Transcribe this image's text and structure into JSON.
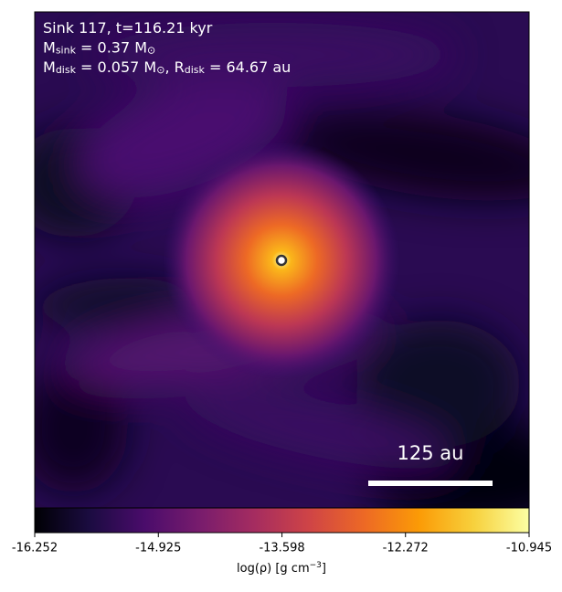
{
  "chart_data": {
    "type": "image",
    "annotations": [
      [
        {
          "text": "Sink 117, t=116.21 kyr"
        }
      ],
      [
        {
          "text": "M"
        },
        {
          "text": "sink",
          "sub": true
        },
        {
          "text": " = 0.37 M"
        },
        {
          "text": "⊙",
          "sub": true
        }
      ],
      [
        {
          "text": "M"
        },
        {
          "text": "disk",
          "sub": true
        },
        {
          "text": " = 0.057 M"
        },
        {
          "text": "⊙",
          "sub": true
        },
        {
          "text": ", R"
        },
        {
          "text": "disk",
          "sub": true
        },
        {
          "text": " = 64.67 au"
        }
      ]
    ],
    "scale_bar": "125 au",
    "colorbar": {
      "clim": [
        -16.252,
        -10.945
      ],
      "ticks": [
        -16.252,
        -14.925,
        -13.598,
        -12.272,
        -10.945
      ],
      "label": [
        {
          "text": "log(ρ) [g cm"
        },
        {
          "text": "−3",
          "sup": true
        },
        {
          "text": "]"
        }
      ],
      "colormap": [
        "#000004",
        "#1b0c41",
        "#4a0c6b",
        "#781c6d",
        "#a52c60",
        "#cf4446",
        "#ed6925",
        "#fb9b06",
        "#f7d13d",
        "#fcffa4"
      ]
    }
  }
}
